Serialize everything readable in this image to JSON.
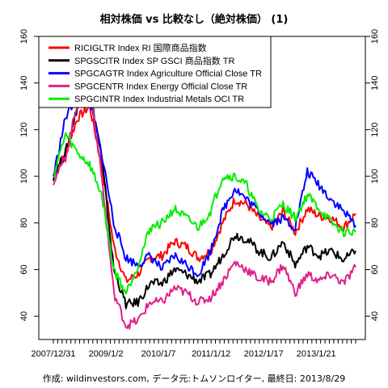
{
  "chart_data": {
    "type": "line",
    "title": "相対株価 vs 比較なし（絶対株価） (1)",
    "footer": "作成: wildinvestors.com, データ元:トムソンロイター, 最終日: 2013/8/29",
    "ylim": [
      30,
      160
    ],
    "yticks": [
      40,
      60,
      80,
      100,
      120,
      140,
      160
    ],
    "x_tick_labels": [
      "2007/12/31",
      "2009/1/2",
      "2010/1/7",
      "2011/1/12",
      "2012/1/17",
      "2013/1/21"
    ],
    "legend_position": "top-left",
    "grid": false,
    "x": [
      "2007/12",
      "2008/3",
      "2008/6",
      "2008/7",
      "2008/9",
      "2008/11",
      "2009/1",
      "2009/3",
      "2009/6",
      "2009/9",
      "2009/12",
      "2010/3",
      "2010/6",
      "2010/9",
      "2010/12",
      "2011/3",
      "2011/6",
      "2011/9",
      "2011/12",
      "2012/3",
      "2012/6",
      "2012/9",
      "2012/12",
      "2013/3",
      "2013/6",
      "2013/8"
    ],
    "series": [
      {
        "name": "RICIGLTR Index RI 国際商品指数",
        "color": "#ff0000",
        "values": [
          100,
          110,
          125,
          130,
          105,
          70,
          55,
          58,
          65,
          66,
          72,
          70,
          65,
          68,
          80,
          90,
          88,
          82,
          78,
          85,
          76,
          86,
          83,
          82,
          78,
          84
        ]
      },
      {
        "name": "SPGSCITR Index SP GSCI 商品指数 TR",
        "color": "#000000",
        "values": [
          100,
          110,
          130,
          138,
          108,
          60,
          45,
          46,
          54,
          54,
          60,
          58,
          55,
          58,
          66,
          75,
          73,
          68,
          65,
          72,
          62,
          70,
          66,
          68,
          64,
          68
        ]
      },
      {
        "name": "SPGCAGTR Index Agriculture Official Close TR",
        "color": "#0000ff",
        "values": [
          100,
          125,
          135,
          132,
          110,
          80,
          65,
          62,
          66,
          60,
          66,
          62,
          58,
          68,
          85,
          95,
          90,
          85,
          80,
          82,
          78,
          102,
          96,
          90,
          85,
          79
        ]
      },
      {
        "name": "SPGCENTR Index Energy Official Close TR",
        "color": "#e0208a",
        "values": [
          98,
          108,
          132,
          140,
          100,
          50,
          36,
          38,
          46,
          46,
          52,
          50,
          46,
          48,
          55,
          63,
          60,
          56,
          55,
          62,
          50,
          58,
          55,
          58,
          54,
          61
        ]
      },
      {
        "name": "SPGCINTR Index Industrial Metals OCI TR",
        "color": "#00ee00",
        "values": [
          100,
          118,
          110,
          105,
          92,
          60,
          50,
          62,
          78,
          80,
          86,
          82,
          78,
          85,
          100,
          100,
          96,
          85,
          82,
          88,
          82,
          92,
          86,
          80,
          76,
          76
        ]
      }
    ]
  }
}
